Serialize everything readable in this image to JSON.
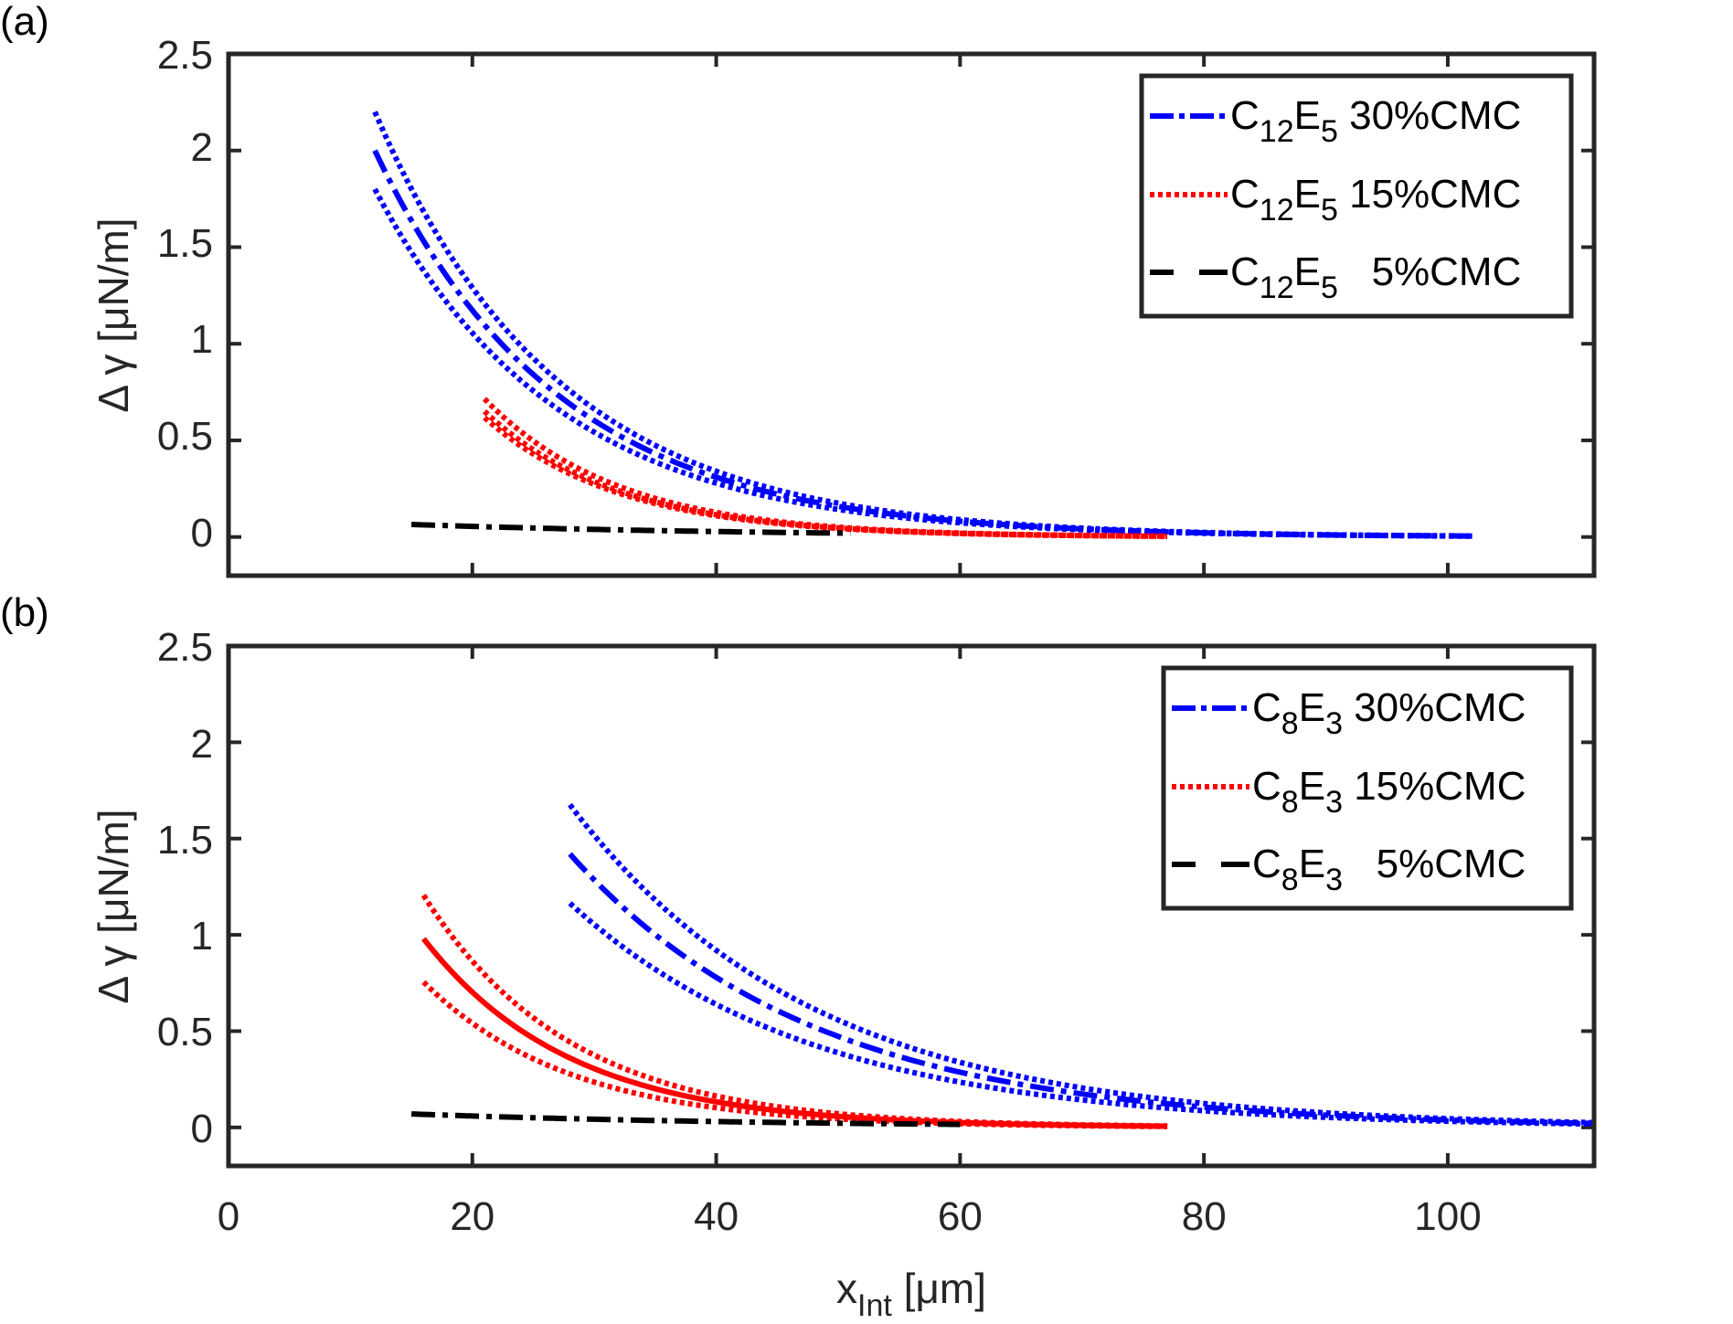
{
  "figure": {
    "xlabel_main": "x",
    "xlabel_sub": "Int",
    "xlabel_unit": " [μm]",
    "ylabel_delta": "Δ γ",
    "ylabel_unit": " [μN/m]"
  },
  "colors": {
    "blue": "#0000ff",
    "red": "#ff0000",
    "black": "#000000",
    "axis": "#262626"
  },
  "chart_data": [
    {
      "type": "line",
      "panel_label": "(a)",
      "xlim": [
        0,
        112
      ],
      "ylim": [
        -0.2,
        2.5
      ],
      "x_ticks": [
        0,
        20,
        40,
        60,
        80,
        100
      ],
      "x_tick_labels": [
        "",
        "",
        "",
        "",
        "",
        ""
      ],
      "y_ticks": [
        0,
        0.5,
        1,
        1.5,
        2,
        2.5
      ],
      "y_tick_labels": [
        "0",
        "0.5",
        "1",
        "1.5",
        "2",
        "2.5"
      ],
      "legend_location": "top-right",
      "series": [
        {
          "name_base": "C",
          "name_sub1": "12",
          "name_mid": "E",
          "name_sub2": "5",
          "name_tail": " 30%CMC",
          "color": "#0000ff",
          "style": "dashdot",
          "x_start": 12,
          "x_end": 102,
          "y_start": 2.0,
          "decay_um": 15,
          "band_upper": 1.1,
          "band_lower": 0.9,
          "band_style": "dotted"
        },
        {
          "name_base": "C",
          "name_sub1": "12",
          "name_mid": "E",
          "name_sub2": "5",
          "name_tail": " 15%CMC",
          "color": "#ff0000",
          "style": "dotted",
          "x_start": 21,
          "x_end": 77,
          "y_start": 0.65,
          "decay_um": 11,
          "band_upper": 1.1,
          "band_lower": 0.95,
          "band_style": "dotted"
        },
        {
          "name_base": "C",
          "name_sub1": "12",
          "name_mid": "E",
          "name_sub2": "5",
          "name_tail": "   5%CMC",
          "color": "#000000",
          "style": "dashdot",
          "x_start": 15,
          "x_end": 51,
          "y_start": 0.065,
          "decay_um": 30,
          "band_upper": 1.0,
          "band_lower": 1.0,
          "band_style": "none"
        }
      ]
    },
    {
      "type": "line",
      "panel_label": "(b)",
      "xlim": [
        0,
        112
      ],
      "ylim": [
        -0.2,
        2.5
      ],
      "x_ticks": [
        0,
        20,
        40,
        60,
        80,
        100
      ],
      "x_tick_labels": [
        "0",
        "20",
        "40",
        "60",
        "80",
        "100"
      ],
      "y_ticks": [
        0,
        0.5,
        1,
        1.5,
        2,
        2.5
      ],
      "y_tick_labels": [
        "0",
        "0.5",
        "1",
        "1.5",
        "2",
        "2.5"
      ],
      "legend_location": "top-right",
      "series": [
        {
          "name_base": "C",
          "name_sub1": "8",
          "name_mid": "E",
          "name_sub2": "3",
          "name_tail": " 30%CMC",
          "color": "#0000ff",
          "style": "dashdot",
          "x_start": 28,
          "x_end": 112,
          "y_start": 1.42,
          "decay_um": 20,
          "band_upper": 1.18,
          "band_lower": 0.82,
          "band_style": "dotted"
        },
        {
          "name_base": "C",
          "name_sub1": "8",
          "name_mid": "E",
          "name_sub2": "3",
          "name_tail": " 15%CMC",
          "color": "#ff0000",
          "style": "solid",
          "x_start": 16,
          "x_end": 77,
          "y_start": 0.98,
          "decay_um": 12,
          "band_upper": 1.23,
          "band_lower": 0.77,
          "band_style": "dotted"
        },
        {
          "name_base": "C",
          "name_sub1": "8",
          "name_mid": "E",
          "name_sub2": "3",
          "name_tail": "   5%CMC",
          "color": "#000000",
          "style": "dashdot",
          "x_start": 15,
          "x_end": 60,
          "y_start": 0.07,
          "decay_um": 30,
          "band_upper": 1.0,
          "band_lower": 1.0,
          "band_style": "none"
        }
      ]
    }
  ]
}
